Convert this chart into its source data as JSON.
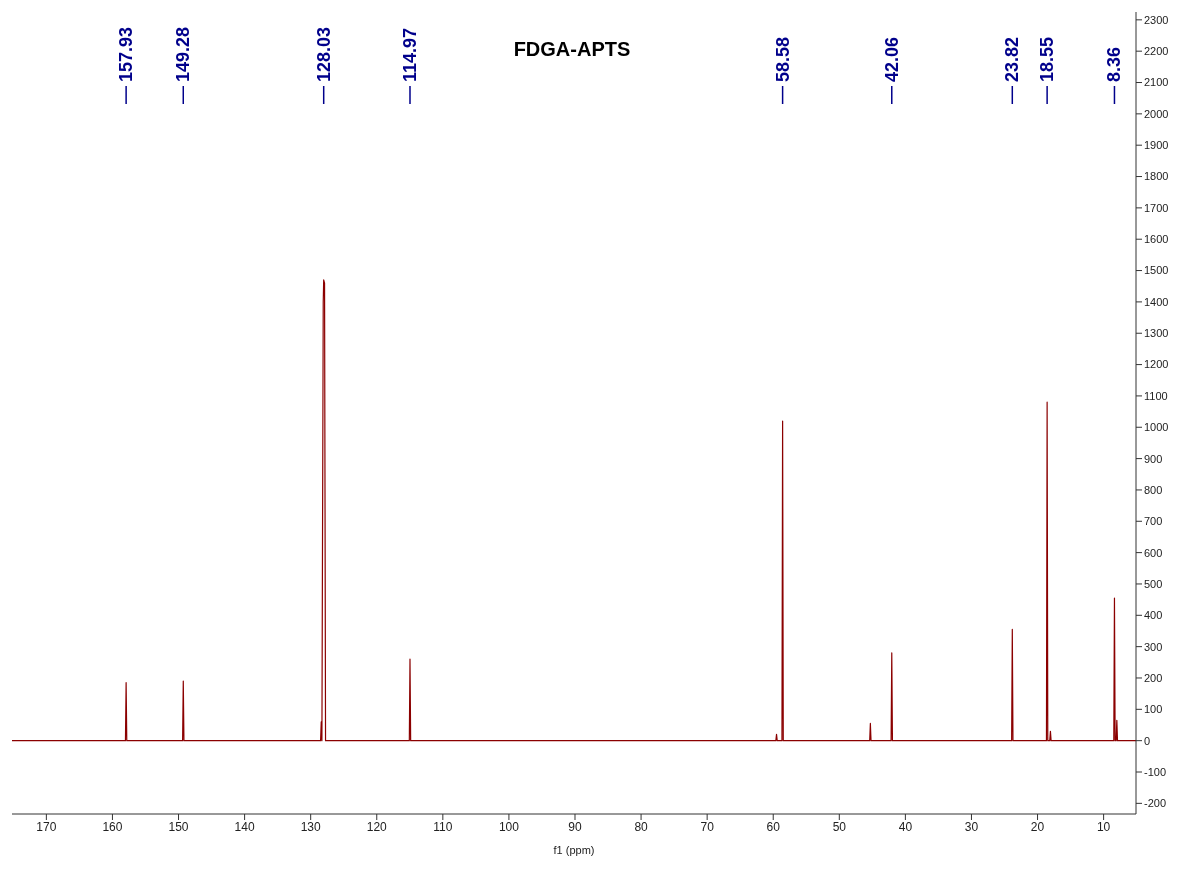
{
  "chart_data": {
    "type": "line",
    "title": "FDGA-APTS",
    "xlabel": "f1 (ppm)",
    "x": [
      175.2,
      158.03,
      157.93,
      157.83,
      149.38,
      149.28,
      149.18,
      128.5,
      128.4,
      128.3,
      128.1,
      128.03,
      127.9,
      127.75,
      115.07,
      114.97,
      114.87,
      59.6,
      59.5,
      59.4,
      58.68,
      58.58,
      58.48,
      45.4,
      45.3,
      45.2,
      42.16,
      42.06,
      41.96,
      23.92,
      23.82,
      23.72,
      18.65,
      18.55,
      18.45,
      18.15,
      18.05,
      17.95,
      8.46,
      8.36,
      8.26,
      8.1,
      8.0,
      7.9,
      5.1
    ],
    "series": [
      {
        "color": "#8b0000",
        "values": [
          0,
          0,
          185,
          0,
          0,
          190,
          0,
          0,
          60,
          0,
          1400,
          1470,
          1460,
          0,
          0,
          260,
          0,
          0,
          20,
          0,
          0,
          1020,
          0,
          0,
          55,
          0,
          0,
          280,
          0,
          0,
          355,
          0,
          0,
          1080,
          0,
          0,
          30,
          0,
          0,
          455,
          0,
          0,
          65,
          0,
          0
        ]
      }
    ],
    "annotations": [
      {
        "text": "157.93",
        "x": 157.93
      },
      {
        "text": "149.28",
        "x": 149.28
      },
      {
        "text": "128.03",
        "x": 128.03
      },
      {
        "text": "114.97",
        "x": 114.97
      },
      {
        "text": "58.58",
        "x": 58.58
      },
      {
        "text": "42.06",
        "x": 42.06
      },
      {
        "text": "23.82",
        "x": 23.82
      },
      {
        "text": "18.55",
        "x": 18.55
      },
      {
        "text": "8.36",
        "x": 8.36
      }
    ],
    "xlim": [
      175.2,
      5.1
    ],
    "xticks": [
      170,
      160,
      150,
      140,
      130,
      120,
      110,
      100,
      90,
      80,
      70,
      60,
      50,
      40,
      30,
      20,
      10
    ],
    "ylim": [
      -234,
      2325
    ],
    "yticks": [
      -200,
      -100,
      0,
      100,
      200,
      300,
      400,
      500,
      600,
      700,
      800,
      900,
      1000,
      1100,
      1200,
      1300,
      1400,
      1500,
      1600,
      1700,
      1800,
      1900,
      2000,
      2100,
      2200,
      2300
    ],
    "marker": "none",
    "line_style": "solid"
  }
}
